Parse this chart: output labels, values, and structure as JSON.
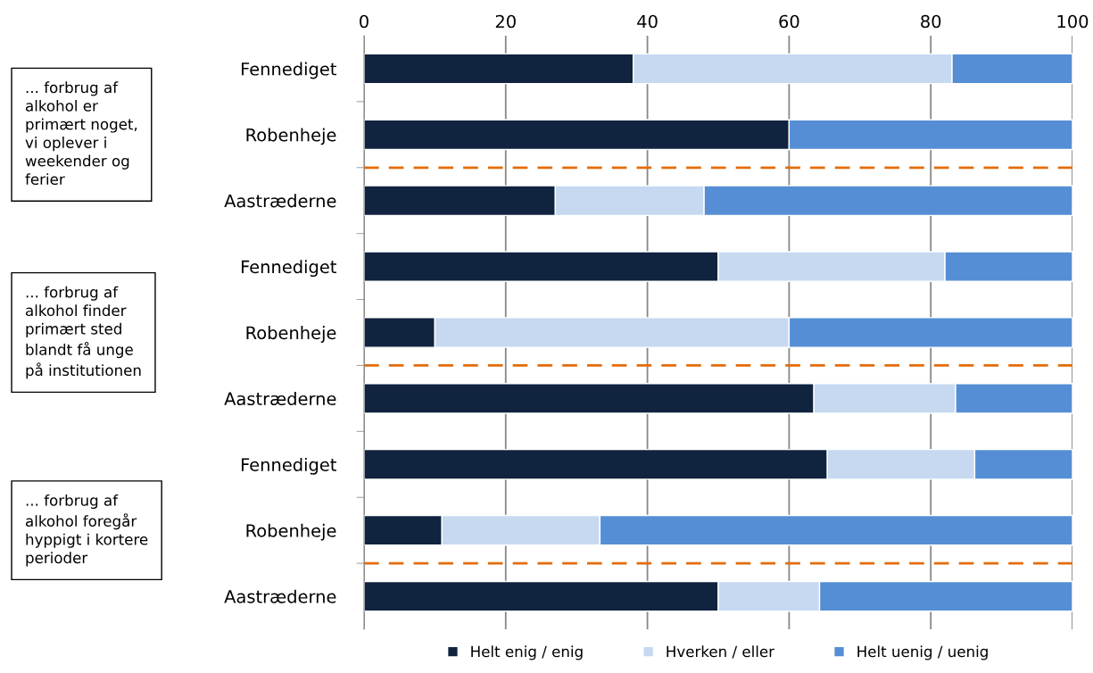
{
  "chart_data": {
    "type": "bar",
    "orientation": "horizontal",
    "stacked": true,
    "categories": [
      "Fennediget",
      "Robenheje",
      "Aastræderne",
      "Fennediget",
      "Robenheje",
      "Aastræderne",
      "Fennediget",
      "Robenheje",
      "Aastræderne"
    ],
    "series": [
      {
        "name": "Helt enig / enig",
        "color": "#10233f",
        "values": [
          38,
          60,
          27,
          50,
          10,
          63.5,
          65.4,
          11,
          50
        ]
      },
      {
        "name": "Hverken / eller",
        "color": "#c6d9f1",
        "values": [
          45,
          0,
          21,
          32,
          50,
          20,
          20.8,
          22.3,
          14.3
        ]
      },
      {
        "name": "Helt uenig / uenig",
        "color": "#558ed5",
        "values": [
          17,
          40,
          52,
          18,
          40,
          16.5,
          13.8,
          66.7,
          35.7
        ]
      }
    ],
    "xlim": [
      0,
      100
    ],
    "xticks": [
      0,
      20,
      40,
      60,
      80,
      100
    ],
    "grid": "x",
    "legend": "bottom",
    "annotations": [
      "... forbrug af\nalkohol er\nprimært noget,\nvi oplever i\nweekender og\nferier",
      "... forbrug af\nalkohol finder\nprimært sted\nblandt få unge\npå institutionen",
      "... forbrug af\nalkohol foregår\nhyppigt i kortere\nperioder"
    ]
  }
}
